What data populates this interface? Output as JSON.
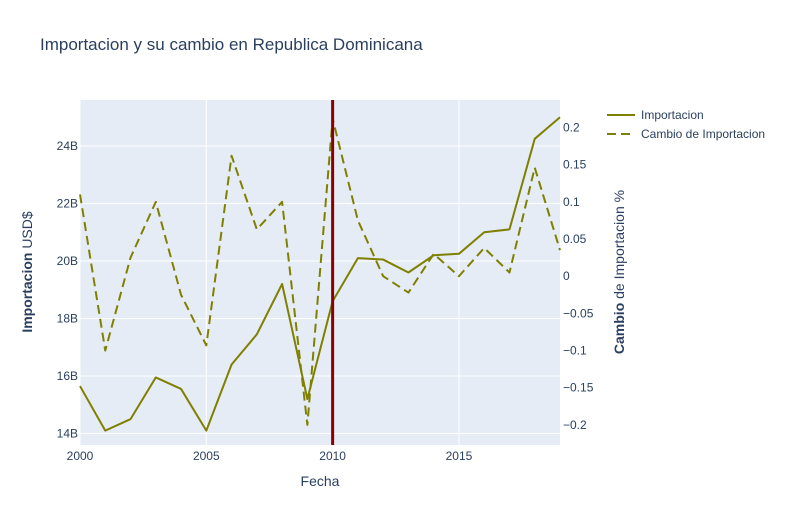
{
  "chart_data": {
    "type": "line",
    "title": "Importacion y su cambio en Republica Dominicana",
    "xlabel": "Fecha",
    "ylabel_bold": "Importacion",
    "ylabel_rest": " USD$",
    "y2label_bold": "Cambio",
    "y2label_rest": " de Importacion %",
    "x": [
      2000,
      2001,
      2002,
      2003,
      2004,
      2005,
      2006,
      2007,
      2008,
      2009,
      2010,
      2011,
      2012,
      2013,
      2014,
      2015,
      2016,
      2017,
      2018,
      2019
    ],
    "xlim": [
      2000,
      2019
    ],
    "ylim": [
      13.6,
      25.6
    ],
    "y2lim": [
      -0.227,
      0.237
    ],
    "xticks": [
      2000,
      2005,
      2010,
      2015
    ],
    "xtick_labels": [
      "2000",
      "2005",
      "2010",
      "2015"
    ],
    "yticks": [
      14,
      16,
      18,
      20,
      22,
      24
    ],
    "ytick_labels": [
      "14B",
      "16B",
      "18B",
      "20B",
      "22B",
      "24B"
    ],
    "y2ticks": [
      -0.2,
      -0.15,
      -0.1,
      -0.05,
      0,
      0.05,
      0.1,
      0.15,
      0.2
    ],
    "y2tick_labels": [
      "−0.2",
      "−0.15",
      "−0.1",
      "−0.05",
      "0",
      "0.05",
      "0.1",
      "0.15",
      "0.2"
    ],
    "series": [
      {
        "name": "Importacion",
        "axis": "y",
        "dash": "solid",
        "color": "#808000",
        "values": [
          15.65,
          14.1,
          14.5,
          15.95,
          15.55,
          14.1,
          16.4,
          17.45,
          19.2,
          15.2,
          18.6,
          20.1,
          20.05,
          19.6,
          20.2,
          20.25,
          21.0,
          21.1,
          24.25,
          25.0
        ]
      },
      {
        "name": "Cambio de Importacion",
        "axis": "y2",
        "dash": "dash",
        "color": "#808000",
        "values": [
          0.11,
          -0.1,
          0.025,
          0.1,
          -0.025,
          -0.093,
          0.162,
          0.063,
          0.1,
          -0.2,
          0.212,
          0.075,
          0.0,
          -0.022,
          0.03,
          0.0,
          0.038,
          0.005,
          0.146,
          0.035
        ]
      }
    ],
    "vline": {
      "x": 2010,
      "color": "#8b0000"
    },
    "legend": "top-right",
    "grid": true,
    "plot_bg": "#e5ecf6",
    "grid_color": "#ffffff"
  }
}
